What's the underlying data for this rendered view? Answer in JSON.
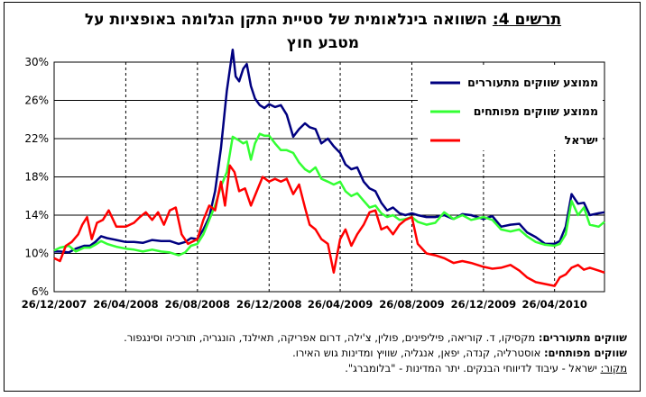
{
  "title_prefix": "תרשים 4:",
  "title_line1": "השוואה בינלאומית של סטיית התקן הגלומה באופציות על",
  "title_line2": "מטבע חוץ",
  "notes": {
    "emerging_label": "שווקים מתעוררים:",
    "emerging_text": "מקסיקו, ד. קוריאה, פיליפינים, פולין, צ'ילה, דרום אפריקה, תאילנד, הונגריה, תורכיה וסינגפור.",
    "developed_label": "שווקים מפותחים:",
    "developed_text": "אוסטרליה, קנדה, יפאן, אנגליה, שוויץ ומדינות גוש האירו.",
    "source_label": "מקור:",
    "source_text": "ישראל - עיבוד לדיווחי הבנקים. יתר המדינות - \"בלומברג\"."
  },
  "chart_data": {
    "type": "line",
    "x_start": "2007-12-26",
    "x_end": "2010-07-20",
    "x_ticks": [
      "26/12/2007",
      "26/04/2008",
      "26/08/2008",
      "26/12/2008",
      "26/04/2009",
      "26/08/2009",
      "26/12/2009",
      "26/04/2010"
    ],
    "x_tick_dates": [
      "2007-12-26",
      "2008-04-26",
      "2008-08-26",
      "2008-12-26",
      "2009-04-26",
      "2009-08-26",
      "2009-12-26",
      "2010-04-26"
    ],
    "y_ticks": [
      "6%",
      "10%",
      "14%",
      "18%",
      "22%",
      "26%",
      "30%"
    ],
    "ylim": [
      6,
      30
    ],
    "grid": "horizontal solid, vertical dashed",
    "legend_position": "top-right",
    "series": [
      {
        "name": "ממוצע שווקים מתעוררים",
        "color": "#000080",
        "points": [
          [
            "2007-12-26",
            10.2
          ],
          [
            "2008-01-05",
            10.2
          ],
          [
            "2008-01-20",
            10.1
          ],
          [
            "2008-02-01",
            10.5
          ],
          [
            "2008-02-15",
            10.8
          ],
          [
            "2008-02-25",
            10.8
          ],
          [
            "2008-03-05",
            11.2
          ],
          [
            "2008-03-15",
            11.8
          ],
          [
            "2008-03-25",
            11.6
          ],
          [
            "2008-04-10",
            11.4
          ],
          [
            "2008-04-26",
            11.2
          ],
          [
            "2008-05-10",
            11.2
          ],
          [
            "2008-05-25",
            11.1
          ],
          [
            "2008-06-10",
            11.4
          ],
          [
            "2008-06-25",
            11.3
          ],
          [
            "2008-07-10",
            11.3
          ],
          [
            "2008-07-25",
            11.0
          ],
          [
            "2008-08-05",
            11.2
          ],
          [
            "2008-08-15",
            11.6
          ],
          [
            "2008-08-26",
            11.5
          ],
          [
            "2008-09-05",
            12.5
          ],
          [
            "2008-09-15",
            13.8
          ],
          [
            "2008-09-25",
            16.5
          ],
          [
            "2008-10-05",
            21.0
          ],
          [
            "2008-10-15",
            27.0
          ],
          [
            "2008-10-20",
            29.2
          ],
          [
            "2008-10-25",
            31.3
          ],
          [
            "2008-10-30",
            28.5
          ],
          [
            "2008-11-05",
            28.0
          ],
          [
            "2008-11-12",
            29.3
          ],
          [
            "2008-11-18",
            29.8
          ],
          [
            "2008-11-25",
            27.5
          ],
          [
            "2008-12-02",
            26.2
          ],
          [
            "2008-12-10",
            25.5
          ],
          [
            "2008-12-18",
            25.2
          ],
          [
            "2008-12-26",
            25.6
          ],
          [
            "2009-01-05",
            25.3
          ],
          [
            "2009-01-15",
            25.5
          ],
          [
            "2009-01-25",
            24.5
          ],
          [
            "2009-02-05",
            22.2
          ],
          [
            "2009-02-15",
            23.0
          ],
          [
            "2009-02-25",
            23.6
          ],
          [
            "2009-03-05",
            23.2
          ],
          [
            "2009-03-15",
            23.0
          ],
          [
            "2009-03-25",
            21.5
          ],
          [
            "2009-04-05",
            22.0
          ],
          [
            "2009-04-15",
            21.2
          ],
          [
            "2009-04-26",
            20.5
          ],
          [
            "2009-05-05",
            19.3
          ],
          [
            "2009-05-15",
            18.8
          ],
          [
            "2009-05-25",
            19.0
          ],
          [
            "2009-06-05",
            17.5
          ],
          [
            "2009-06-15",
            16.8
          ],
          [
            "2009-06-25",
            16.5
          ],
          [
            "2009-07-05",
            15.3
          ],
          [
            "2009-07-15",
            14.5
          ],
          [
            "2009-07-25",
            14.8
          ],
          [
            "2009-08-05",
            14.2
          ],
          [
            "2009-08-15",
            14.0
          ],
          [
            "2009-08-26",
            14.2
          ],
          [
            "2009-09-05",
            14.0
          ],
          [
            "2009-09-20",
            13.8
          ],
          [
            "2009-10-05",
            13.8
          ],
          [
            "2009-10-20",
            14.0
          ],
          [
            "2009-11-05",
            13.6
          ],
          [
            "2009-11-20",
            14.1
          ],
          [
            "2009-12-05",
            14.0
          ],
          [
            "2009-12-26",
            13.6
          ],
          [
            "2010-01-10",
            13.9
          ],
          [
            "2010-01-25",
            12.8
          ],
          [
            "2010-02-10",
            13.0
          ],
          [
            "2010-02-25",
            13.1
          ],
          [
            "2010-03-10",
            12.2
          ],
          [
            "2010-03-25",
            11.7
          ],
          [
            "2010-04-10",
            11.0
          ],
          [
            "2010-04-26",
            11.0
          ],
          [
            "2010-05-05",
            11.3
          ],
          [
            "2010-05-15",
            12.8
          ],
          [
            "2010-05-25",
            16.2
          ],
          [
            "2010-06-05",
            15.2
          ],
          [
            "2010-06-15",
            15.3
          ],
          [
            "2010-06-25",
            14.0
          ],
          [
            "2010-07-10",
            14.2
          ],
          [
            "2010-07-20",
            14.3
          ]
        ]
      },
      {
        "name": "ממוצע שווקים מפותחים",
        "color": "#33ff33",
        "points": [
          [
            "2007-12-26",
            10.3
          ],
          [
            "2008-01-05",
            10.6
          ],
          [
            "2008-01-20",
            10.8
          ],
          [
            "2008-02-01",
            10.2
          ],
          [
            "2008-02-15",
            10.6
          ],
          [
            "2008-02-25",
            10.6
          ],
          [
            "2008-03-05",
            10.9
          ],
          [
            "2008-03-15",
            11.3
          ],
          [
            "2008-03-25",
            11.0
          ],
          [
            "2008-04-10",
            10.7
          ],
          [
            "2008-04-26",
            10.5
          ],
          [
            "2008-05-10",
            10.4
          ],
          [
            "2008-05-25",
            10.2
          ],
          [
            "2008-06-10",
            10.4
          ],
          [
            "2008-06-25",
            10.2
          ],
          [
            "2008-07-10",
            10.1
          ],
          [
            "2008-07-25",
            9.8
          ],
          [
            "2008-08-05",
            10.1
          ],
          [
            "2008-08-15",
            10.8
          ],
          [
            "2008-08-26",
            11.0
          ],
          [
            "2008-09-05",
            12.0
          ],
          [
            "2008-09-15",
            13.5
          ],
          [
            "2008-09-25",
            15.0
          ],
          [
            "2008-10-05",
            17.0
          ],
          [
            "2008-10-15",
            18.5
          ],
          [
            "2008-10-25",
            22.2
          ],
          [
            "2008-11-05",
            21.8
          ],
          [
            "2008-11-12",
            21.5
          ],
          [
            "2008-11-18",
            21.7
          ],
          [
            "2008-11-25",
            19.8
          ],
          [
            "2008-12-02",
            21.5
          ],
          [
            "2008-12-10",
            22.5
          ],
          [
            "2008-12-18",
            22.3
          ],
          [
            "2008-12-26",
            22.3
          ],
          [
            "2009-01-05",
            21.5
          ],
          [
            "2009-01-15",
            20.8
          ],
          [
            "2009-01-25",
            20.8
          ],
          [
            "2009-02-05",
            20.5
          ],
          [
            "2009-02-15",
            19.5
          ],
          [
            "2009-02-25",
            18.8
          ],
          [
            "2009-03-05",
            18.5
          ],
          [
            "2009-03-15",
            19.0
          ],
          [
            "2009-03-25",
            17.8
          ],
          [
            "2009-04-05",
            17.5
          ],
          [
            "2009-04-15",
            17.2
          ],
          [
            "2009-04-26",
            17.5
          ],
          [
            "2009-05-05",
            16.5
          ],
          [
            "2009-05-15",
            16.0
          ],
          [
            "2009-05-25",
            16.3
          ],
          [
            "2009-06-05",
            15.5
          ],
          [
            "2009-06-15",
            14.8
          ],
          [
            "2009-06-25",
            15.0
          ],
          [
            "2009-07-05",
            14.2
          ],
          [
            "2009-07-15",
            13.8
          ],
          [
            "2009-07-25",
            14.0
          ],
          [
            "2009-08-05",
            13.5
          ],
          [
            "2009-08-15",
            13.6
          ],
          [
            "2009-08-26",
            13.8
          ],
          [
            "2009-09-05",
            13.3
          ],
          [
            "2009-09-20",
            13.0
          ],
          [
            "2009-10-05",
            13.2
          ],
          [
            "2009-10-20",
            14.3
          ],
          [
            "2009-11-05",
            13.6
          ],
          [
            "2009-11-20",
            14.0
          ],
          [
            "2009-12-05",
            13.5
          ],
          [
            "2009-12-26",
            13.8
          ],
          [
            "2010-01-10",
            13.5
          ],
          [
            "2010-01-25",
            12.5
          ],
          [
            "2010-02-10",
            12.3
          ],
          [
            "2010-02-25",
            12.5
          ],
          [
            "2010-03-10",
            11.8
          ],
          [
            "2010-03-25",
            11.2
          ],
          [
            "2010-04-10",
            10.9
          ],
          [
            "2010-04-26",
            10.8
          ],
          [
            "2010-05-05",
            11.0
          ],
          [
            "2010-05-15",
            12.0
          ],
          [
            "2010-05-25",
            15.5
          ],
          [
            "2010-06-05",
            14.0
          ],
          [
            "2010-06-15",
            14.8
          ],
          [
            "2010-06-25",
            13.0
          ],
          [
            "2010-07-10",
            12.8
          ],
          [
            "2010-07-20",
            13.3
          ]
        ]
      },
      {
        "name": "ישראל",
        "color": "#ff0000",
        "points": [
          [
            "2007-12-26",
            9.5
          ],
          [
            "2008-01-05",
            9.2
          ],
          [
            "2008-01-15",
            10.8
          ],
          [
            "2008-01-25",
            11.2
          ],
          [
            "2008-02-05",
            12.0
          ],
          [
            "2008-02-12",
            13.0
          ],
          [
            "2008-02-20",
            13.8
          ],
          [
            "2008-02-28",
            11.5
          ],
          [
            "2008-03-08",
            13.2
          ],
          [
            "2008-03-18",
            13.5
          ],
          [
            "2008-03-28",
            14.5
          ],
          [
            "2008-04-10",
            12.8
          ],
          [
            "2008-04-26",
            12.8
          ],
          [
            "2008-05-10",
            13.2
          ],
          [
            "2008-05-20",
            13.8
          ],
          [
            "2008-05-30",
            14.3
          ],
          [
            "2008-06-10",
            13.5
          ],
          [
            "2008-06-20",
            14.3
          ],
          [
            "2008-06-30",
            13.0
          ],
          [
            "2008-07-10",
            14.5
          ],
          [
            "2008-07-20",
            14.8
          ],
          [
            "2008-07-30",
            12.0
          ],
          [
            "2008-08-10",
            11.0
          ],
          [
            "2008-08-26",
            11.5
          ],
          [
            "2008-09-05",
            13.5
          ],
          [
            "2008-09-15",
            15.0
          ],
          [
            "2008-09-25",
            14.5
          ],
          [
            "2008-10-05",
            17.5
          ],
          [
            "2008-10-12",
            15.0
          ],
          [
            "2008-10-20",
            19.2
          ],
          [
            "2008-10-28",
            18.5
          ],
          [
            "2008-11-05",
            16.5
          ],
          [
            "2008-11-15",
            16.8
          ],
          [
            "2008-11-25",
            15.0
          ],
          [
            "2008-12-05",
            16.5
          ],
          [
            "2008-12-15",
            18.0
          ],
          [
            "2008-12-26",
            17.5
          ],
          [
            "2009-01-05",
            17.8
          ],
          [
            "2009-01-15",
            17.5
          ],
          [
            "2009-01-25",
            17.8
          ],
          [
            "2009-02-05",
            16.2
          ],
          [
            "2009-02-15",
            17.2
          ],
          [
            "2009-02-25",
            14.8
          ],
          [
            "2009-03-05",
            13.0
          ],
          [
            "2009-03-15",
            12.5
          ],
          [
            "2009-03-25",
            11.5
          ],
          [
            "2009-04-05",
            11.0
          ],
          [
            "2009-04-15",
            8.0
          ],
          [
            "2009-04-26",
            11.5
          ],
          [
            "2009-05-05",
            12.5
          ],
          [
            "2009-05-15",
            10.8
          ],
          [
            "2009-05-25",
            12.0
          ],
          [
            "2009-06-05",
            13.0
          ],
          [
            "2009-06-15",
            14.3
          ],
          [
            "2009-06-25",
            14.5
          ],
          [
            "2009-07-05",
            12.5
          ],
          [
            "2009-07-15",
            12.8
          ],
          [
            "2009-07-25",
            12.0
          ],
          [
            "2009-08-05",
            13.0
          ],
          [
            "2009-08-15",
            13.5
          ],
          [
            "2009-08-26",
            13.8
          ],
          [
            "2009-09-05",
            11.0
          ],
          [
            "2009-09-20",
            10.0
          ],
          [
            "2009-10-05",
            9.8
          ],
          [
            "2009-10-20",
            9.5
          ],
          [
            "2009-11-05",
            9.0
          ],
          [
            "2009-11-20",
            9.2
          ],
          [
            "2009-12-05",
            9.0
          ],
          [
            "2009-12-26",
            8.6
          ],
          [
            "2010-01-10",
            8.4
          ],
          [
            "2010-01-25",
            8.5
          ],
          [
            "2010-02-10",
            8.8
          ],
          [
            "2010-02-25",
            8.2
          ],
          [
            "2010-03-10",
            7.5
          ],
          [
            "2010-03-25",
            7.0
          ],
          [
            "2010-04-10",
            6.8
          ],
          [
            "2010-04-26",
            6.6
          ],
          [
            "2010-05-05",
            7.5
          ],
          [
            "2010-05-15",
            7.8
          ],
          [
            "2010-05-25",
            8.5
          ],
          [
            "2010-06-05",
            8.8
          ],
          [
            "2010-06-15",
            8.3
          ],
          [
            "2010-06-25",
            8.5
          ],
          [
            "2010-07-10",
            8.2
          ],
          [
            "2010-07-20",
            8.0
          ]
        ]
      }
    ]
  }
}
